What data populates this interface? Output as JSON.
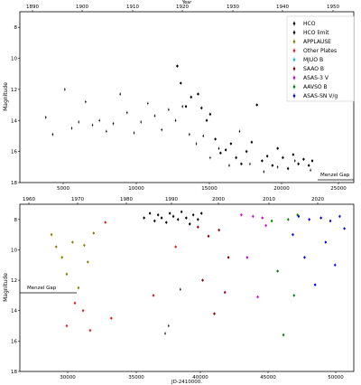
{
  "chart_data": [
    {
      "type": "scatter",
      "xlabel": "",
      "ylabel": "Magnitude",
      "top_axis_label": "Year",
      "xlim": [
        2406500,
        2425800
      ],
      "ylim": [
        18,
        7
      ],
      "y_inverted": true,
      "x_ticks": [
        "5000",
        "10000",
        "15000",
        "20000",
        "25000"
      ],
      "y_ticks": [
        "8",
        "10",
        "12",
        "14",
        "16",
        "18"
      ],
      "top_ticks": [
        "1890",
        "1900",
        "1910",
        "1920",
        "1930",
        "1940",
        "1950"
      ],
      "legend": [
        "HCO",
        "HCO limit",
        "APPLAUSE",
        "Other Plates",
        "MJUO B",
        "SAAO B",
        "ASAS-3 V",
        "AAVSO B",
        "ASAS-SN V/g"
      ],
      "legend_colors": [
        "#000000",
        "#000000",
        "#808000",
        "#e41a1c",
        "#17becf",
        "#8b0000",
        "#cc00cc",
        "#008000",
        "#0000ee"
      ],
      "legend_position": "top-right",
      "annotation": "Menzel Gap",
      "series": [
        {
          "name": "HCO limit",
          "x": [
            2408000,
            2408400,
            2409100,
            2409500,
            2409900,
            2410300,
            2410700,
            2411100,
            2411500,
            2411900,
            2412300,
            2412700,
            2413100,
            2413500,
            2413900,
            2414300,
            2414700,
            2415100,
            2415500,
            2415900,
            2416300,
            2416700,
            2417100,
            2417500,
            2418000,
            2418600,
            2419200,
            2419800,
            2420600,
            2421400,
            2422400,
            2423300
          ],
          "y": [
            13.8,
            14.9,
            12.0,
            14.5,
            14.1,
            12.8,
            14.3,
            14.0,
            14.7,
            14.2,
            12.3,
            13.5,
            14.8,
            14.1,
            12.9,
            13.7,
            14.6,
            13.3,
            14.0,
            13.1,
            14.9,
            15.5,
            15.0,
            16.4,
            15.8,
            16.9,
            14.7,
            16.8,
            17.3,
            17.0,
            16.6,
            17.2
          ]
        },
        {
          "name": "HCO",
          "x": [
            2415600,
            2415800,
            2416100,
            2416400,
            2416800,
            2417000,
            2417300,
            2417500,
            2417800,
            2418100,
            2418400,
            2418700,
            2419000,
            2419300,
            2419600,
            2419900,
            2420200,
            2420500,
            2420800,
            2421100,
            2421400,
            2421700,
            2422000,
            2422300,
            2422600,
            2422900,
            2423200,
            2423400
          ],
          "y": [
            10.5,
            11.6,
            13.1,
            12.5,
            12.3,
            13.2,
            14.0,
            13.6,
            15.2,
            16.1,
            15.9,
            15.5,
            16.4,
            16.8,
            16.0,
            15.4,
            13.0,
            16.6,
            16.3,
            16.9,
            15.8,
            16.4,
            17.1,
            16.2,
            16.8,
            16.5,
            16.9,
            16.6
          ]
        }
      ]
    },
    {
      "type": "scatter",
      "xlabel": "JD-2410000.",
      "ylabel": "Magnitude",
      "xlim": [
        2423500,
        2452000
      ],
      "ylim": [
        18,
        7
      ],
      "y_inverted": true,
      "x_ticks": [
        "30000",
        "35000",
        "40000",
        "45000",
        "50000"
      ],
      "y_ticks": [
        "8",
        "10",
        "12",
        "14",
        "16",
        "18"
      ],
      "top_ticks": [
        "1960",
        "1970",
        "1980",
        "1990",
        "2000",
        "2010",
        "2020"
      ],
      "annotation": "Menzel Gap",
      "series": [
        {
          "name": "APPLAUSE",
          "x": [
            2426200,
            2426600,
            2427100,
            2427500,
            2428000,
            2428500,
            2429000,
            2429300,
            2429800
          ],
          "y": [
            9.0,
            9.8,
            10.5,
            11.6,
            9.5,
            12.5,
            9.7,
            10.8,
            8.9
          ]
        },
        {
          "name": "Other Plates",
          "x": [
            2427500,
            2428200,
            2428900,
            2429500,
            2430800,
            2431300,
            2434900,
            2436800
          ],
          "y": [
            15.0,
            13.5,
            14.0,
            15.3,
            8.2,
            14.5,
            13.0,
            9.8
          ]
        },
        {
          "name": "HCO",
          "x": [
            2434100,
            2434600,
            2435000,
            2435300,
            2435600,
            2436000,
            2436300,
            2436600,
            2437000,
            2437300,
            2437700,
            2438000,
            2438300,
            2438700,
            2439000
          ],
          "y": [
            7.9,
            7.6,
            8.1,
            7.7,
            7.9,
            8.2,
            7.6,
            7.8,
            8.0,
            7.5,
            7.9,
            8.3,
            7.7,
            8.0,
            7.6
          ]
        },
        {
          "name": "HCO limit",
          "x": [
            2435900,
            2436200,
            2437200
          ],
          "y": [
            15.5,
            15.0,
            12.6
          ]
        },
        {
          "name": "SAAO B",
          "x": [
            2438700,
            2439100,
            2439600,
            2440100,
            2440500,
            2441000,
            2441300
          ],
          "y": [
            8.5,
            12.0,
            9.1,
            14.2,
            8.7,
            12.8,
            10.5
          ]
        },
        {
          "name": "ASAS-3 V",
          "x": [
            2442400,
            2442900,
            2443400,
            2443800,
            2444200,
            2444500
          ],
          "y": [
            7.7,
            10.5,
            7.8,
            13.1,
            7.9,
            8.4
          ]
        },
        {
          "name": "AAVSO B",
          "x": [
            2445000,
            2445500,
            2446000,
            2446400,
            2446900,
            2447200
          ],
          "y": [
            8.1,
            11.4,
            15.6,
            8.0,
            13.0,
            7.7
          ]
        },
        {
          "name": "ASAS-SN V/g",
          "x": [
            2446800,
            2447300,
            2447800,
            2448200,
            2448700,
            2449200,
            2449600,
            2450000,
            2450400,
            2450800,
            2451200
          ],
          "y": [
            9.0,
            7.8,
            10.5,
            8.0,
            12.3,
            7.9,
            9.5,
            8.1,
            11.0,
            7.8,
            8.6
          ]
        }
      ]
    }
  ]
}
